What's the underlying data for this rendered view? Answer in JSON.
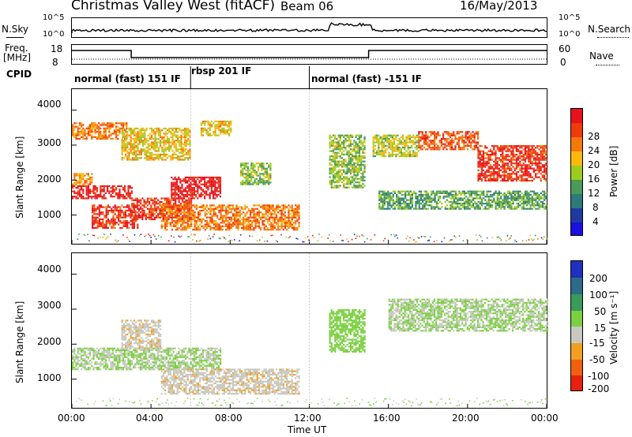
{
  "header": {
    "station": "Christmas Valley West (fitACF)",
    "beam": "Beam 06",
    "date": "16/May/2013"
  },
  "top_panels": {
    "nsky_label": "N.Sky",
    "nsky_ticks": [
      "10^5",
      "10^0"
    ],
    "nsearch_label": "N.Search",
    "nsearch_ticks": [
      "10^5",
      "10^0"
    ],
    "freq_label_1": "Freq.",
    "freq_label_2": "[MHz]",
    "freq_ticks": [
      "18",
      "8"
    ],
    "nave_label": "Nave",
    "nave_ticks": [
      "60",
      "0"
    ],
    "cpid_label": "CPID",
    "cpid_segments": [
      "normal (fast) 151 IF",
      "rbsp 201 IF",
      "normal (fast) -151 IF"
    ]
  },
  "power_panel": {
    "ylabel": "Slant Range [km]",
    "yticks": [
      "4000",
      "3000",
      "2000",
      "1000"
    ],
    "cbar_label": "Power [dB]",
    "cbar_ticks": [
      "28",
      "24",
      "20",
      "16",
      "12",
      "8",
      "4"
    ],
    "cbar_colors": [
      "#e8121c",
      "#f03a0c",
      "#f5780a",
      "#fbb80e",
      "#9ccc20",
      "#4a9a5a",
      "#2e7a7a",
      "#203aa0",
      "#1a10e0"
    ]
  },
  "velocity_panel": {
    "ylabel": "Slant Range [km]",
    "yticks": [
      "4000",
      "3000",
      "2000",
      "1000"
    ],
    "cbar_label": "Velocity [m s⁻¹]",
    "cbar_ticks": [
      "200",
      "100",
      "50",
      "15",
      "-15",
      "-50",
      "-100",
      "-200"
    ],
    "cbar_colors": [
      "#2030c0",
      "#2e6a8a",
      "#3a9a5a",
      "#7ad040",
      "#c8c8c0",
      "#f0a020",
      "#f06010",
      "#e82010"
    ]
  },
  "xaxis": {
    "label": "Time UT",
    "ticks": [
      "00:00",
      "04:00",
      "08:00",
      "12:00",
      "16:00",
      "20:00",
      "00:00"
    ]
  },
  "chart_data": {
    "type": "heatmap",
    "title": "Christmas Valley West (fitACF)",
    "xlabel": "Time UT",
    "ylabel": "Slant Range [km]",
    "x_range_hours": [
      0,
      24
    ],
    "y_range_km": [
      180,
      4600
    ],
    "power_scale_db": [
      0,
      30
    ],
    "velocity_scale_ms": [
      -250,
      250
    ],
    "power_bands": [
      {
        "start_h": 0.0,
        "end_h": 3.0,
        "range_km": [
          1500,
          1850
        ],
        "power_db": 28
      },
      {
        "start_h": 0.0,
        "end_h": 1.0,
        "range_km": [
          1900,
          2200
        ],
        "power_db": 20
      },
      {
        "start_h": 0.0,
        "end_h": 2.8,
        "range_km": [
          3200,
          3650
        ],
        "power_db": 22
      },
      {
        "start_h": 1.0,
        "end_h": 3.3,
        "range_km": [
          650,
          1300
        ],
        "power_db": 26
      },
      {
        "start_h": 3.0,
        "end_h": 6.0,
        "range_km": [
          900,
          1500
        ],
        "power_db": 26
      },
      {
        "start_h": 2.5,
        "end_h": 6.0,
        "range_km": [
          2600,
          3500
        ],
        "power_db": 18
      },
      {
        "start_h": 5.0,
        "end_h": 7.5,
        "range_km": [
          1500,
          2100
        ],
        "power_db": 28
      },
      {
        "start_h": 6.5,
        "end_h": 8.0,
        "range_km": [
          3300,
          3700
        ],
        "power_db": 18
      },
      {
        "start_h": 8.5,
        "end_h": 10.0,
        "range_km": [
          1900,
          2500
        ],
        "power_db": 14
      },
      {
        "start_h": 4.5,
        "end_h": 11.5,
        "range_km": [
          600,
          1300
        ],
        "power_db": 22
      },
      {
        "start_h": 13.0,
        "end_h": 14.8,
        "range_km": [
          1800,
          3300
        ],
        "power_db": 14
      },
      {
        "start_h": 15.2,
        "end_h": 17.5,
        "range_km": [
          2700,
          3300
        ],
        "power_db": 16
      },
      {
        "start_h": 17.5,
        "end_h": 20.5,
        "range_km": [
          2900,
          3400
        ],
        "power_db": 24
      },
      {
        "start_h": 20.5,
        "end_h": 24.0,
        "range_km": [
          2000,
          3000
        ],
        "power_db": 26
      },
      {
        "start_h": 15.5,
        "end_h": 24.0,
        "range_km": [
          1200,
          1700
        ],
        "power_db": 12
      }
    ],
    "velocity_bands": [
      {
        "start_h": 0.0,
        "end_h": 7.5,
        "range_km": [
          1300,
          1900
        ],
        "velocity_ms": 0
      },
      {
        "start_h": 2.5,
        "end_h": 4.5,
        "range_km": [
          1900,
          2700
        ],
        "velocity_ms": -60
      },
      {
        "start_h": 4.5,
        "end_h": 11.5,
        "range_km": [
          600,
          1300
        ],
        "velocity_ms": -60
      },
      {
        "start_h": 16.0,
        "end_h": 24.0,
        "range_km": [
          2400,
          3300
        ],
        "velocity_ms": 0
      },
      {
        "start_h": 13.0,
        "end_h": 14.8,
        "range_km": [
          1800,
          3000
        ],
        "velocity_ms": 30
      }
    ]
  }
}
